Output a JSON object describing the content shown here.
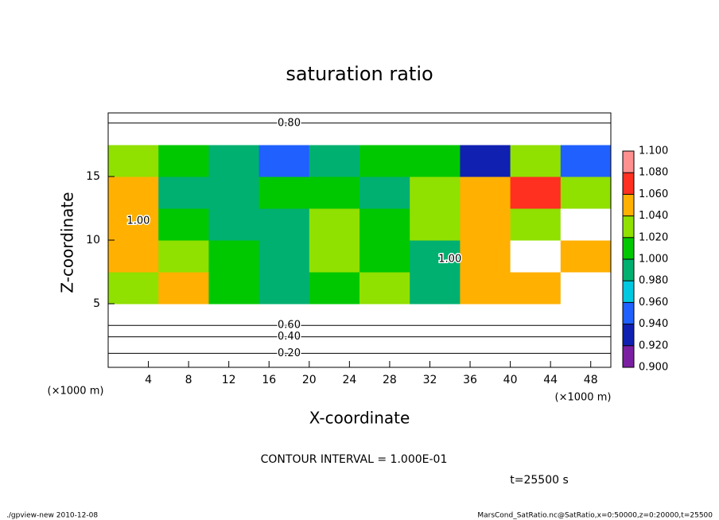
{
  "chart_data": {
    "type": "heatmap",
    "title": "saturation ratio",
    "xlabel": "X-coordinate",
    "ylabel": "Z-coordinate",
    "xunit": "(×1000 m)",
    "yunit": "(×1000 m)",
    "xlim": [
      0,
      50
    ],
    "xticks": [
      4,
      8,
      12,
      16,
      20,
      24,
      28,
      32,
      36,
      40,
      44,
      48
    ],
    "ylim": [
      0,
      20
    ],
    "yticks": [
      5,
      10,
      15
    ],
    "x": [
      2.5,
      7.5,
      12.5,
      17.5,
      22.5,
      27.5,
      32.5,
      37.5,
      42.5,
      47.5
    ],
    "y": [
      1.25,
      3.75,
      6.25,
      8.75,
      11.25,
      13.75,
      16.25,
      18.75
    ],
    "values": [
      [
        0.3,
        0.3,
        0.3,
        0.3,
        0.3,
        0.3,
        0.3,
        0.3,
        0.3,
        0.3
      ],
      [
        0.7,
        0.7,
        0.7,
        0.7,
        0.7,
        0.7,
        0.7,
        0.7,
        0.7,
        0.7
      ],
      [
        1.03,
        1.05,
        1.01,
        1.0,
        1.02,
        1.04,
        1.0,
        1.06,
        1.05,
        1.12
      ],
      [
        1.06,
        1.04,
        1.02,
        1.0,
        1.03,
        1.02,
        1.0,
        1.05,
        1.12,
        1.06
      ],
      [
        1.05,
        1.01,
        1.0,
        1.0,
        1.04,
        1.01,
        1.04,
        1.06,
        1.03,
        1.12
      ],
      [
        1.06,
        1.0,
        1.0,
        1.02,
        1.01,
        1.0,
        1.04,
        1.05,
        1.07,
        1.03
      ],
      [
        1.04,
        1.02,
        1.0,
        0.96,
        1.0,
        1.01,
        1.02,
        0.94,
        1.03,
        0.95
      ],
      [
        0.85,
        0.85,
        0.85,
        0.85,
        0.85,
        0.85,
        0.85,
        0.85,
        0.85,
        0.85
      ]
    ],
    "colors": [
      "#7b1fa2",
      "#1020b0",
      "#2060ff",
      "#00c8e0",
      "#00b070",
      "#00c800",
      "#90e000",
      "#ffb000",
      "#ff3020",
      "#ff9090"
    ],
    "cticks": [
      {
        "value": 0.9,
        "label": "0.900"
      },
      {
        "value": 0.92,
        "label": "0.920"
      },
      {
        "value": 0.94,
        "label": "0.940"
      },
      {
        "value": 0.96,
        "label": "0.960"
      },
      {
        "value": 0.98,
        "label": "0.980"
      },
      {
        "value": 1.0,
        "label": "1.000"
      },
      {
        "value": 1.02,
        "label": "1.020"
      },
      {
        "value": 1.04,
        "label": "1.040"
      },
      {
        "value": 1.06,
        "label": "1.060"
      },
      {
        "value": 1.08,
        "label": "1.080"
      },
      {
        "value": 1.1,
        "label": "1.100"
      }
    ],
    "contour_labels": [
      {
        "label": "0.20",
        "x": 18,
        "y": 1.1
      },
      {
        "label": "0.40",
        "x": 18,
        "y": 2.4
      },
      {
        "label": "0.60",
        "x": 18,
        "y": 3.3
      },
      {
        "label": "0.80",
        "x": 18,
        "y": 19.2
      },
      {
        "label": "1.00",
        "x": 3,
        "y": 11.5
      },
      {
        "label": "1.00",
        "x": 34,
        "y": 8.5
      }
    ],
    "annotation": "CONTOUR INTERVAL = 1.000E-01",
    "time_label": "t=25500 s",
    "footer_left": "./gpview-new  2010-12-08",
    "footer_right": "MarsCond_SatRatio.nc@SatRatio,x=0:50000,z=0:20000,t=25500"
  }
}
